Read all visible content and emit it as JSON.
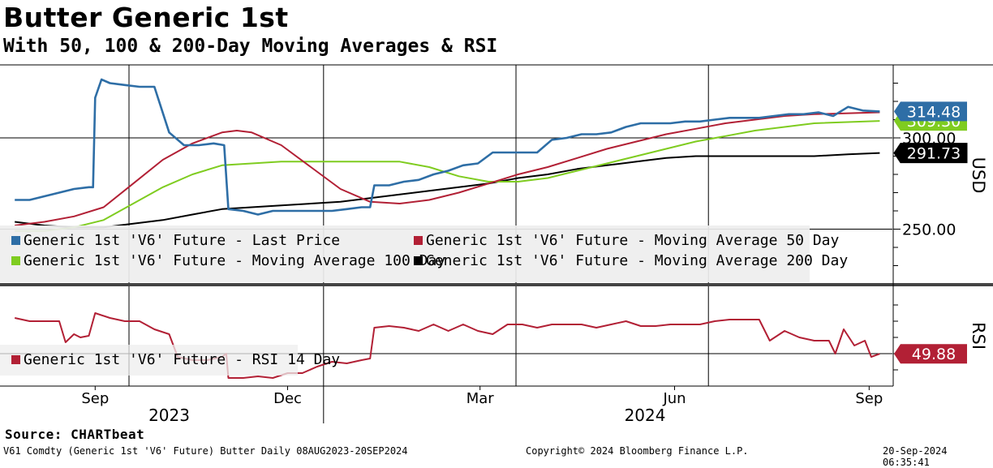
{
  "header": {
    "title": "Butter Generic 1st",
    "subtitle": "With 50, 100 & 200-Day Moving Averages & RSI"
  },
  "footer": {
    "source": "Source: CHARTbeat",
    "left": "V61 Comdty (Generic 1st 'V6' Future) Butter  Daily 08AUG2023-20SEP2024",
    "center": "Copyright© 2024 Bloomberg Finance L.P.",
    "right": "20-Sep-2024 06:35:41"
  },
  "chart_data": [
    {
      "type": "line",
      "panel": "price",
      "ylabel": "USD",
      "ylim": [
        220,
        340
      ],
      "yticks": [
        {
          "value": 250,
          "label": "250.00"
        },
        {
          "value": 300,
          "label": "300.00"
        }
      ],
      "grid": true,
      "legend_position": "bottom-left",
      "series": [
        {
          "name": "Generic 1st 'V6' Future - Last Price",
          "color": "#2e6ea6",
          "end_label": "314.48",
          "points": [
            [
              "2023-08-08",
              266
            ],
            [
              "2023-08-15",
              266
            ],
            [
              "2023-08-22",
              268
            ],
            [
              "2023-08-29",
              270
            ],
            [
              "2023-09-05",
              272
            ],
            [
              "2023-09-12",
              273
            ],
            [
              "2023-09-14",
              273
            ],
            [
              "2023-09-15",
              322
            ],
            [
              "2023-09-18",
              332
            ],
            [
              "2023-09-22",
              330
            ],
            [
              "2023-09-29",
              329
            ],
            [
              "2023-10-06",
              328
            ],
            [
              "2023-10-13",
              328
            ],
            [
              "2023-10-20",
              303
            ],
            [
              "2023-10-27",
              296
            ],
            [
              "2023-11-03",
              296
            ],
            [
              "2023-11-10",
              297
            ],
            [
              "2023-11-15",
              296
            ],
            [
              "2023-11-17",
              261
            ],
            [
              "2023-11-24",
              260
            ],
            [
              "2023-12-01",
              258
            ],
            [
              "2023-12-08",
              260
            ],
            [
              "2023-12-15",
              260
            ],
            [
              "2023-12-22",
              260
            ],
            [
              "2023-12-29",
              260
            ],
            [
              "2024-01-05",
              260
            ],
            [
              "2024-01-12",
              261
            ],
            [
              "2024-01-19",
              262
            ],
            [
              "2024-01-23",
              262
            ],
            [
              "2024-01-25",
              274
            ],
            [
              "2024-02-01",
              274
            ],
            [
              "2024-02-08",
              276
            ],
            [
              "2024-02-15",
              277
            ],
            [
              "2024-02-22",
              280
            ],
            [
              "2024-02-29",
              282
            ],
            [
              "2024-03-07",
              285
            ],
            [
              "2024-03-14",
              286
            ],
            [
              "2024-03-21",
              292
            ],
            [
              "2024-03-28",
              292
            ],
            [
              "2024-04-04",
              292
            ],
            [
              "2024-04-11",
              292
            ],
            [
              "2024-04-18",
              299
            ],
            [
              "2024-04-25",
              300
            ],
            [
              "2024-05-02",
              302
            ],
            [
              "2024-05-09",
              302
            ],
            [
              "2024-05-16",
              303
            ],
            [
              "2024-05-23",
              306
            ],
            [
              "2024-05-30",
              308
            ],
            [
              "2024-06-06",
              308
            ],
            [
              "2024-06-13",
              308
            ],
            [
              "2024-06-20",
              309
            ],
            [
              "2024-06-27",
              309
            ],
            [
              "2024-07-04",
              310
            ],
            [
              "2024-07-11",
              311
            ],
            [
              "2024-07-18",
              311
            ],
            [
              "2024-07-25",
              311
            ],
            [
              "2024-08-01",
              312
            ],
            [
              "2024-08-08",
              313
            ],
            [
              "2024-08-15",
              313
            ],
            [
              "2024-08-22",
              314
            ],
            [
              "2024-08-29",
              312
            ],
            [
              "2024-09-05",
              317
            ],
            [
              "2024-09-12",
              315
            ],
            [
              "2024-09-20",
              314.48
            ]
          ]
        },
        {
          "name": "Generic 1st 'V6' Future - Moving Average 50 Day",
          "color": "#b22035",
          "end_label": "",
          "points": [
            [
              "2023-08-08",
              252
            ],
            [
              "2023-08-22",
              254
            ],
            [
              "2023-09-05",
              257
            ],
            [
              "2023-09-19",
              262
            ],
            [
              "2023-10-03",
              275
            ],
            [
              "2023-10-17",
              288
            ],
            [
              "2023-10-31",
              297
            ],
            [
              "2023-11-14",
              303
            ],
            [
              "2023-11-21",
              304
            ],
            [
              "2023-11-28",
              303
            ],
            [
              "2023-12-12",
              296
            ],
            [
              "2023-12-26",
              284
            ],
            [
              "2024-01-09",
              272
            ],
            [
              "2024-01-23",
              265
            ],
            [
              "2024-02-06",
              264
            ],
            [
              "2024-02-20",
              266
            ],
            [
              "2024-03-05",
              270
            ],
            [
              "2024-03-19",
              275
            ],
            [
              "2024-04-02",
              280
            ],
            [
              "2024-04-16",
              284
            ],
            [
              "2024-04-30",
              289
            ],
            [
              "2024-05-14",
              294
            ],
            [
              "2024-05-28",
              298
            ],
            [
              "2024-06-11",
              302
            ],
            [
              "2024-06-25",
              305
            ],
            [
              "2024-07-09",
              308
            ],
            [
              "2024-07-23",
              310
            ],
            [
              "2024-08-06",
              312
            ],
            [
              "2024-08-20",
              313
            ],
            [
              "2024-09-20",
              314
            ]
          ]
        },
        {
          "name": "Generic 1st 'V6' Future - Moving Average 100 Day",
          "color": "#7fcc20",
          "end_label": "309.30",
          "points": [
            [
              "2023-08-08",
              249
            ],
            [
              "2023-08-22",
              249
            ],
            [
              "2023-09-05",
              251
            ],
            [
              "2023-09-19",
              255
            ],
            [
              "2023-10-03",
              264
            ],
            [
              "2023-10-17",
              273
            ],
            [
              "2023-10-31",
              280
            ],
            [
              "2023-11-14",
              285
            ],
            [
              "2023-11-28",
              286
            ],
            [
              "2023-12-12",
              287
            ],
            [
              "2023-12-26",
              287
            ],
            [
              "2024-01-09",
              287
            ],
            [
              "2024-01-23",
              287
            ],
            [
              "2024-02-06",
              287
            ],
            [
              "2024-02-20",
              284
            ],
            [
              "2024-03-05",
              279
            ],
            [
              "2024-03-19",
              276
            ],
            [
              "2024-04-02",
              276
            ],
            [
              "2024-04-16",
              278
            ],
            [
              "2024-04-30",
              282
            ],
            [
              "2024-05-14",
              286
            ],
            [
              "2024-05-28",
              290
            ],
            [
              "2024-06-11",
              294
            ],
            [
              "2024-06-25",
              298
            ],
            [
              "2024-07-09",
              301
            ],
            [
              "2024-07-23",
              304
            ],
            [
              "2024-08-06",
              306
            ],
            [
              "2024-08-20",
              308
            ],
            [
              "2024-09-20",
              309.3
            ]
          ]
        },
        {
          "name": "Generic 1st 'V6' Future - Moving Average 200 Day",
          "color": "#000000",
          "end_label": "291.73",
          "points": [
            [
              "2023-08-08",
              254
            ],
            [
              "2023-08-22",
              252
            ],
            [
              "2023-09-05",
              251
            ],
            [
              "2023-09-19",
              251
            ],
            [
              "2023-10-03",
              253
            ],
            [
              "2023-10-17",
              255
            ],
            [
              "2023-10-31",
              258
            ],
            [
              "2023-11-14",
              261
            ],
            [
              "2023-11-28",
              262
            ],
            [
              "2023-12-12",
              263
            ],
            [
              "2023-12-26",
              264
            ],
            [
              "2024-01-09",
              265
            ],
            [
              "2024-01-23",
              267
            ],
            [
              "2024-02-06",
              269
            ],
            [
              "2024-02-20",
              271
            ],
            [
              "2024-03-05",
              273
            ],
            [
              "2024-03-19",
              275
            ],
            [
              "2024-04-02",
              278
            ],
            [
              "2024-04-16",
              280
            ],
            [
              "2024-04-30",
              283
            ],
            [
              "2024-05-14",
              285
            ],
            [
              "2024-05-28",
              287
            ],
            [
              "2024-06-11",
              289
            ],
            [
              "2024-06-25",
              290
            ],
            [
              "2024-07-09",
              290
            ],
            [
              "2024-07-23",
              290
            ],
            [
              "2024-08-06",
              290
            ],
            [
              "2024-08-20",
              290
            ],
            [
              "2024-09-05",
              291
            ],
            [
              "2024-09-20",
              291.73
            ]
          ]
        }
      ]
    },
    {
      "type": "line",
      "panel": "rsi",
      "ylabel": "RSI",
      "ylim": [
        30,
        90
      ],
      "grid": true,
      "legend_position": "bottom-left",
      "series": [
        {
          "name": "Generic 1st 'V6' Future - RSI 14 Day",
          "color": "#b22035",
          "end_label": "49.88",
          "points": [
            [
              "2023-08-08",
              72
            ],
            [
              "2023-08-15",
              70
            ],
            [
              "2023-08-22",
              70
            ],
            [
              "2023-08-29",
              70
            ],
            [
              "2023-09-01",
              57
            ],
            [
              "2023-09-05",
              62
            ],
            [
              "2023-09-08",
              60
            ],
            [
              "2023-09-12",
              61
            ],
            [
              "2023-09-15",
              75
            ],
            [
              "2023-09-22",
              72
            ],
            [
              "2023-09-29",
              70
            ],
            [
              "2023-10-06",
              70
            ],
            [
              "2023-10-13",
              65
            ],
            [
              "2023-10-20",
              62
            ],
            [
              "2023-10-24",
              48
            ],
            [
              "2023-10-31",
              46
            ],
            [
              "2023-11-07",
              46
            ],
            [
              "2023-11-14",
              48
            ],
            [
              "2023-11-16",
              50
            ],
            [
              "2023-11-17",
              35
            ],
            [
              "2023-11-24",
              35
            ],
            [
              "2023-12-01",
              36
            ],
            [
              "2023-12-08",
              35
            ],
            [
              "2023-12-15",
              38
            ],
            [
              "2023-12-22",
              38
            ],
            [
              "2023-12-29",
              42
            ],
            [
              "2024-01-05",
              45
            ],
            [
              "2024-01-12",
              44
            ],
            [
              "2024-01-19",
              46
            ],
            [
              "2024-01-23",
              47
            ],
            [
              "2024-01-25",
              66
            ],
            [
              "2024-02-01",
              67
            ],
            [
              "2024-02-08",
              66
            ],
            [
              "2024-02-15",
              64
            ],
            [
              "2024-02-22",
              68
            ],
            [
              "2024-02-29",
              64
            ],
            [
              "2024-03-07",
              68
            ],
            [
              "2024-03-14",
              64
            ],
            [
              "2024-03-21",
              62
            ],
            [
              "2024-03-28",
              68
            ],
            [
              "2024-04-04",
              68
            ],
            [
              "2024-04-11",
              66
            ],
            [
              "2024-04-18",
              68
            ],
            [
              "2024-04-25",
              68
            ],
            [
              "2024-05-02",
              68
            ],
            [
              "2024-05-09",
              66
            ],
            [
              "2024-05-16",
              68
            ],
            [
              "2024-05-23",
              70
            ],
            [
              "2024-05-30",
              67
            ],
            [
              "2024-06-06",
              67
            ],
            [
              "2024-06-13",
              68
            ],
            [
              "2024-06-20",
              68
            ],
            [
              "2024-06-27",
              68
            ],
            [
              "2024-07-04",
              70
            ],
            [
              "2024-07-11",
              71
            ],
            [
              "2024-07-18",
              71
            ],
            [
              "2024-07-25",
              71
            ],
            [
              "2024-07-30",
              58
            ],
            [
              "2024-08-06",
              64
            ],
            [
              "2024-08-13",
              60
            ],
            [
              "2024-08-20",
              58
            ],
            [
              "2024-08-27",
              58
            ],
            [
              "2024-08-30",
              50
            ],
            [
              "2024-09-03",
              65
            ],
            [
              "2024-09-08",
              55
            ],
            [
              "2024-09-13",
              58
            ],
            [
              "2024-09-16",
              48
            ],
            [
              "2024-09-20",
              49.88
            ]
          ]
        }
      ]
    }
  ],
  "x_axis": {
    "month_ticks": [
      {
        "date": "2023-09-15",
        "label": "Sep"
      },
      {
        "date": "2023-12-15",
        "label": "Dec"
      },
      {
        "date": "2024-03-15",
        "label": "Mar"
      },
      {
        "date": "2024-06-15",
        "label": "Jun"
      },
      {
        "date": "2024-09-15",
        "label": "Sep"
      }
    ],
    "year_labels": [
      {
        "date": "2023-10-20",
        "label": "2023"
      },
      {
        "date": "2024-06-01",
        "label": "2024"
      }
    ],
    "year_boundary": "2024-01-01",
    "quarter_lines": [
      "2023-10-01",
      "2024-01-01",
      "2024-04-01",
      "2024-07-01"
    ]
  }
}
